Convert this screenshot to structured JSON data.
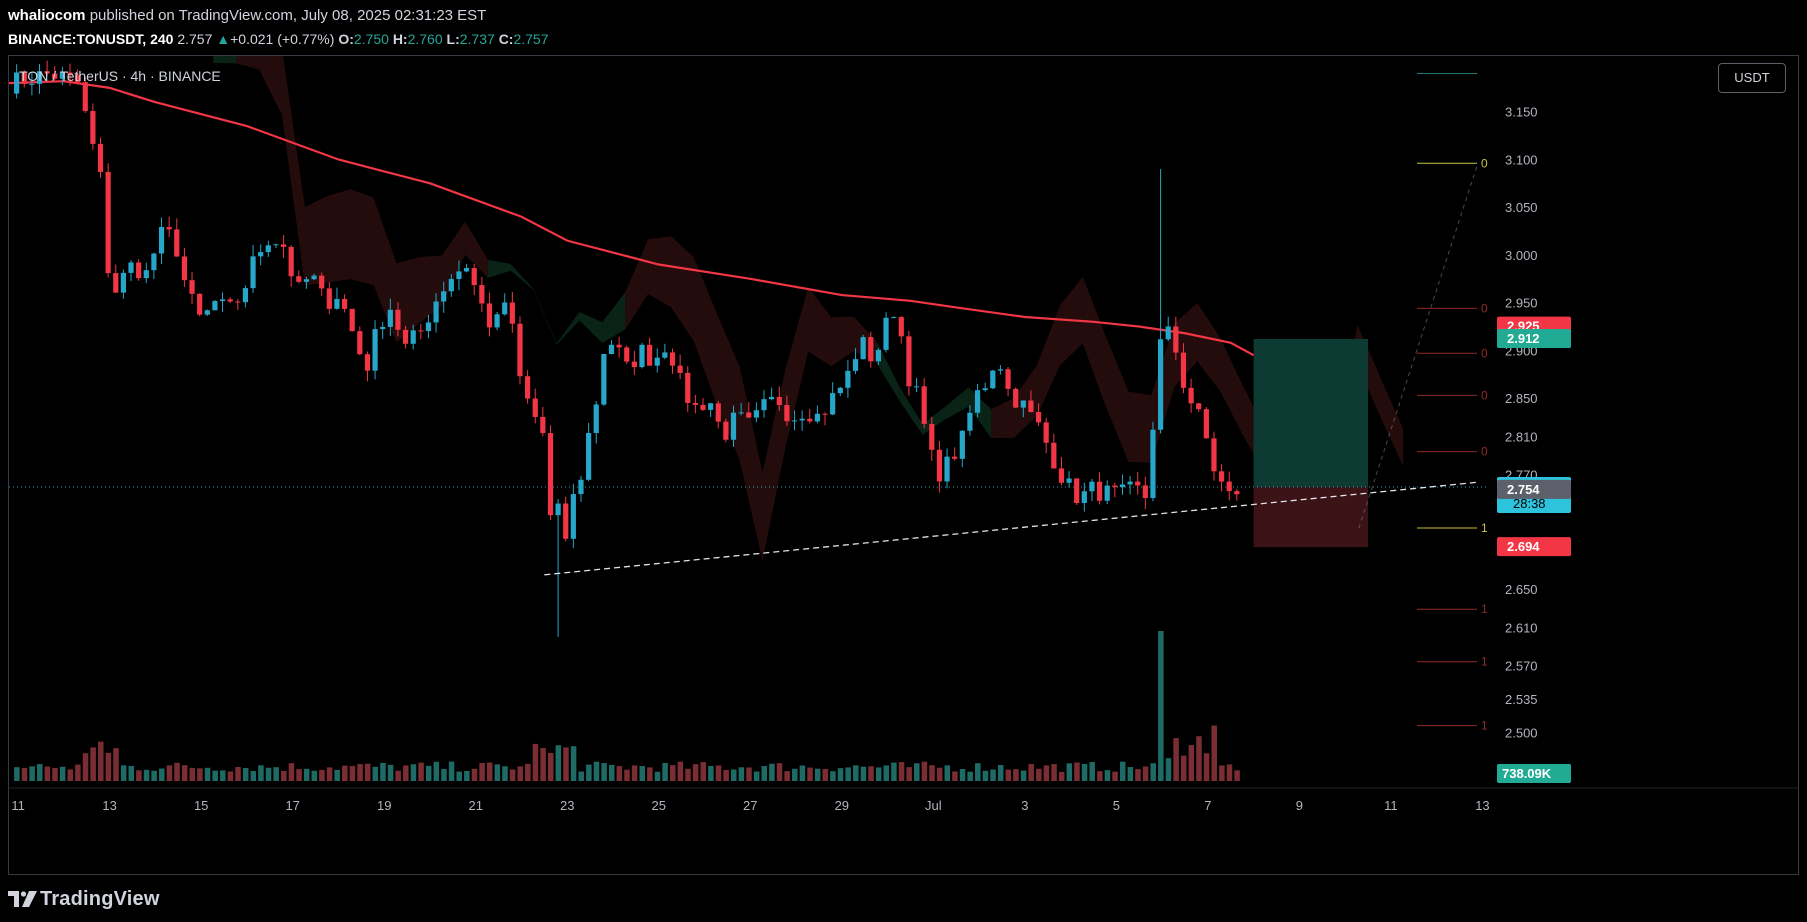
{
  "header": {
    "author": "whaliocom",
    "published_text": "published on TradingView.com, July 08, 2025 02:31:23 EST",
    "symbol": "BINANCE:TONUSDT, 240",
    "price": "2.757",
    "change": "+0.021 (+0.77%)",
    "open_label": "O:",
    "open": "2.750",
    "high_label": "H:",
    "high": "2.760",
    "low_label": "L:",
    "low": "2.737",
    "close_label": "C:",
    "close": "2.757"
  },
  "legend": {
    "text": "TON / TetherUS · 4h · BINANCE"
  },
  "currency_button": "USDT",
  "footer": {
    "logo_text": "TradingView"
  },
  "colors": {
    "up": "#26a6c8",
    "down": "#f23645",
    "ema": "#f23645",
    "vol_up": "#1e6b66",
    "vol_down": "#7a2e33",
    "cloud_red": "#2a0e0e",
    "cloud_green": "#0b2a1a",
    "tp_zone": "#0d3a33",
    "sl_zone": "#3b1216"
  },
  "chart_data": {
    "type": "candlestick",
    "ylim": [
      2.47,
      3.2
    ],
    "xlim_days": [
      10.8,
      43.1
    ],
    "y_ticks": [
      "3.150",
      "3.100",
      "3.050",
      "3.000",
      "2.950",
      "2.900",
      "2.850",
      "2.810",
      "2.770",
      "2.650",
      "2.610",
      "2.570",
      "2.535",
      "2.500"
    ],
    "x_ticks": [
      {
        "label": "11",
        "d": 11
      },
      {
        "label": "13",
        "d": 13
      },
      {
        "label": "15",
        "d": 15
      },
      {
        "label": "17",
        "d": 17
      },
      {
        "label": "19",
        "d": 19
      },
      {
        "label": "21",
        "d": 21
      },
      {
        "label": "23",
        "d": 23
      },
      {
        "label": "25",
        "d": 25
      },
      {
        "label": "27",
        "d": 27
      },
      {
        "label": "29",
        "d": 29
      },
      {
        "label": "Jul",
        "d": 31
      },
      {
        "label": "3",
        "d": 33
      },
      {
        "label": "5",
        "d": 35
      },
      {
        "label": "7",
        "d": 37
      },
      {
        "label": "9",
        "d": 39
      },
      {
        "label": "11",
        "d": 41
      },
      {
        "label": "13",
        "d": 43
      }
    ],
    "anchors": [
      [
        10.8,
        3.18
      ],
      [
        11.7,
        3.19
      ],
      [
        12.3,
        3.18
      ],
      [
        12.7,
        3.1
      ],
      [
        12.9,
        3.06
      ],
      [
        13.0,
        2.95
      ],
      [
        13.2,
        2.97
      ],
      [
        13.5,
        2.99
      ],
      [
        13.8,
        2.98
      ],
      [
        14.1,
        3.02
      ],
      [
        14.4,
        3.02
      ],
      [
        14.7,
        2.96
      ],
      [
        15.0,
        2.93
      ],
      [
        15.3,
        2.95
      ],
      [
        15.6,
        2.94
      ],
      [
        15.9,
        2.96
      ],
      [
        16.2,
        3.0
      ],
      [
        16.5,
        3.02
      ],
      [
        16.8,
        3.01
      ],
      [
        17.1,
        2.96
      ],
      [
        17.4,
        2.98
      ],
      [
        17.7,
        2.95
      ],
      [
        18.0,
        2.96
      ],
      [
        18.3,
        2.92
      ],
      [
        18.6,
        2.88
      ],
      [
        18.9,
        2.93
      ],
      [
        19.2,
        2.95
      ],
      [
        19.4,
        2.9
      ],
      [
        19.8,
        2.92
      ],
      [
        20.2,
        2.96
      ],
      [
        20.5,
        2.98
      ],
      [
        20.8,
        2.99
      ],
      [
        21.1,
        2.95
      ],
      [
        21.4,
        2.92
      ],
      [
        21.7,
        2.96
      ],
      [
        21.9,
        2.88
      ],
      [
        22.1,
        2.85
      ],
      [
        22.3,
        2.83
      ],
      [
        22.5,
        2.81
      ],
      [
        22.6,
        2.74
      ],
      [
        22.7,
        2.69
      ],
      [
        22.8,
        2.73
      ],
      [
        23.0,
        2.7
      ],
      [
        23.1,
        2.74
      ],
      [
        23.3,
        2.77
      ],
      [
        23.5,
        2.82
      ],
      [
        23.7,
        2.86
      ],
      [
        23.8,
        2.9
      ],
      [
        24.0,
        2.91
      ],
      [
        24.3,
        2.88
      ],
      [
        24.6,
        2.9
      ],
      [
        24.9,
        2.89
      ],
      [
        25.2,
        2.91
      ],
      [
        25.5,
        2.86
      ],
      [
        25.8,
        2.84
      ],
      [
        26.1,
        2.85
      ],
      [
        26.4,
        2.81
      ],
      [
        26.7,
        2.83
      ],
      [
        27.0,
        2.82
      ],
      [
        27.3,
        2.84
      ],
      [
        27.6,
        2.85
      ],
      [
        27.9,
        2.83
      ],
      [
        28.2,
        2.84
      ],
      [
        28.5,
        2.83
      ],
      [
        28.8,
        2.85
      ],
      [
        29.1,
        2.87
      ],
      [
        29.4,
        2.91
      ],
      [
        29.7,
        2.89
      ],
      [
        30.0,
        2.93
      ],
      [
        30.2,
        2.95
      ],
      [
        30.4,
        2.88
      ],
      [
        30.6,
        2.86
      ],
      [
        30.8,
        2.82
      ],
      [
        31.0,
        2.78
      ],
      [
        31.2,
        2.77
      ],
      [
        31.4,
        2.79
      ],
      [
        31.6,
        2.8
      ],
      [
        31.9,
        2.85
      ],
      [
        32.2,
        2.87
      ],
      [
        32.4,
        2.9
      ],
      [
        32.6,
        2.86
      ],
      [
        32.8,
        2.85
      ],
      [
        33.0,
        2.84
      ],
      [
        33.3,
        2.82
      ],
      [
        33.6,
        2.79
      ],
      [
        33.9,
        2.76
      ],
      [
        34.2,
        2.745
      ],
      [
        34.5,
        2.755
      ],
      [
        34.8,
        2.75
      ],
      [
        35.1,
        2.748
      ],
      [
        35.4,
        2.755
      ],
      [
        35.7,
        2.745
      ],
      [
        35.9,
        2.9
      ],
      [
        36.1,
        2.92
      ],
      [
        36.3,
        2.9
      ],
      [
        36.5,
        2.86
      ],
      [
        36.7,
        2.84
      ],
      [
        36.9,
        2.82
      ],
      [
        37.1,
        2.78
      ],
      [
        37.3,
        2.76
      ],
      [
        37.5,
        2.745
      ],
      [
        37.7,
        2.757
      ]
    ],
    "spikes": [
      {
        "d": 36.0,
        "high": 3.09
      },
      {
        "d": 22.75,
        "low": 2.6
      }
    ],
    "ema200": [
      [
        10.8,
        3.18
      ],
      [
        12.0,
        3.182
      ],
      [
        13.0,
        3.175
      ],
      [
        14.0,
        3.16
      ],
      [
        16.0,
        3.135
      ],
      [
        18.0,
        3.1
      ],
      [
        20.0,
        3.075
      ],
      [
        22.0,
        3.04
      ],
      [
        23.0,
        3.015
      ],
      [
        25.0,
        2.99
      ],
      [
        27.0,
        2.975
      ],
      [
        29.0,
        2.958
      ],
      [
        30.5,
        2.952
      ],
      [
        31.5,
        2.945
      ],
      [
        33.0,
        2.935
      ],
      [
        34.5,
        2.93
      ],
      [
        35.5,
        2.925
      ],
      [
        36.5,
        2.918
      ],
      [
        37.5,
        2.908
      ],
      [
        38.0,
        2.895
      ]
    ],
    "trendline": {
      "from": [
        22.5,
        2.665
      ],
      "to": [
        42.9,
        2.762
      ]
    },
    "fib_levels": [
      {
        "value": 3.19,
        "label": "",
        "color": "#1f7a79"
      },
      {
        "value": 3.096,
        "label": "0",
        "color": "#c9c43b"
      },
      {
        "value": 2.944,
        "label": "0",
        "color": "#8f2a2a"
      },
      {
        "value": 2.897,
        "label": "0",
        "color": "#8f2a2a"
      },
      {
        "value": 2.853,
        "label": "0",
        "color": "#8f2a2a"
      },
      {
        "value": 2.794,
        "label": "0",
        "color": "#8f2a2a"
      },
      {
        "value": 2.714,
        "label": "1",
        "color": "#c9c43b"
      },
      {
        "value": 2.629,
        "label": "1",
        "color": "#8f2a2a"
      },
      {
        "value": 2.574,
        "label": "1",
        "color": "#8f2a2a"
      },
      {
        "value": 2.507,
        "label": "1",
        "color": "#8f2a2a"
      }
    ],
    "tp_zone": {
      "d1": 38.0,
      "d2": 40.5,
      "top": 2.912,
      "bottom": 2.757
    },
    "sl_zone": {
      "d1": 38.0,
      "d2": 40.5,
      "top": 2.757,
      "bottom": 2.694
    },
    "price_tags": [
      {
        "value": 2.925,
        "text": "2.925",
        "bg": "#f23645",
        "fg": "#ffffff"
      },
      {
        "value": 2.912,
        "text": "2.912",
        "bg": "#22ab94",
        "fg": "#ffffff"
      },
      {
        "value": 2.757,
        "text": "2.757",
        "sub": "28:38",
        "bg": "#2dc3dc",
        "fg": "#000000"
      },
      {
        "value": 2.754,
        "text": "2.754",
        "bg": "#5d606b",
        "fg": "#ffffff"
      },
      {
        "value": 2.694,
        "text": "2.694",
        "bg": "#f23645",
        "fg": "#ffffff"
      }
    ],
    "volume_label": "738.09K",
    "volume_spike": {
      "d": 36.0,
      "rel": 1.0
    }
  }
}
